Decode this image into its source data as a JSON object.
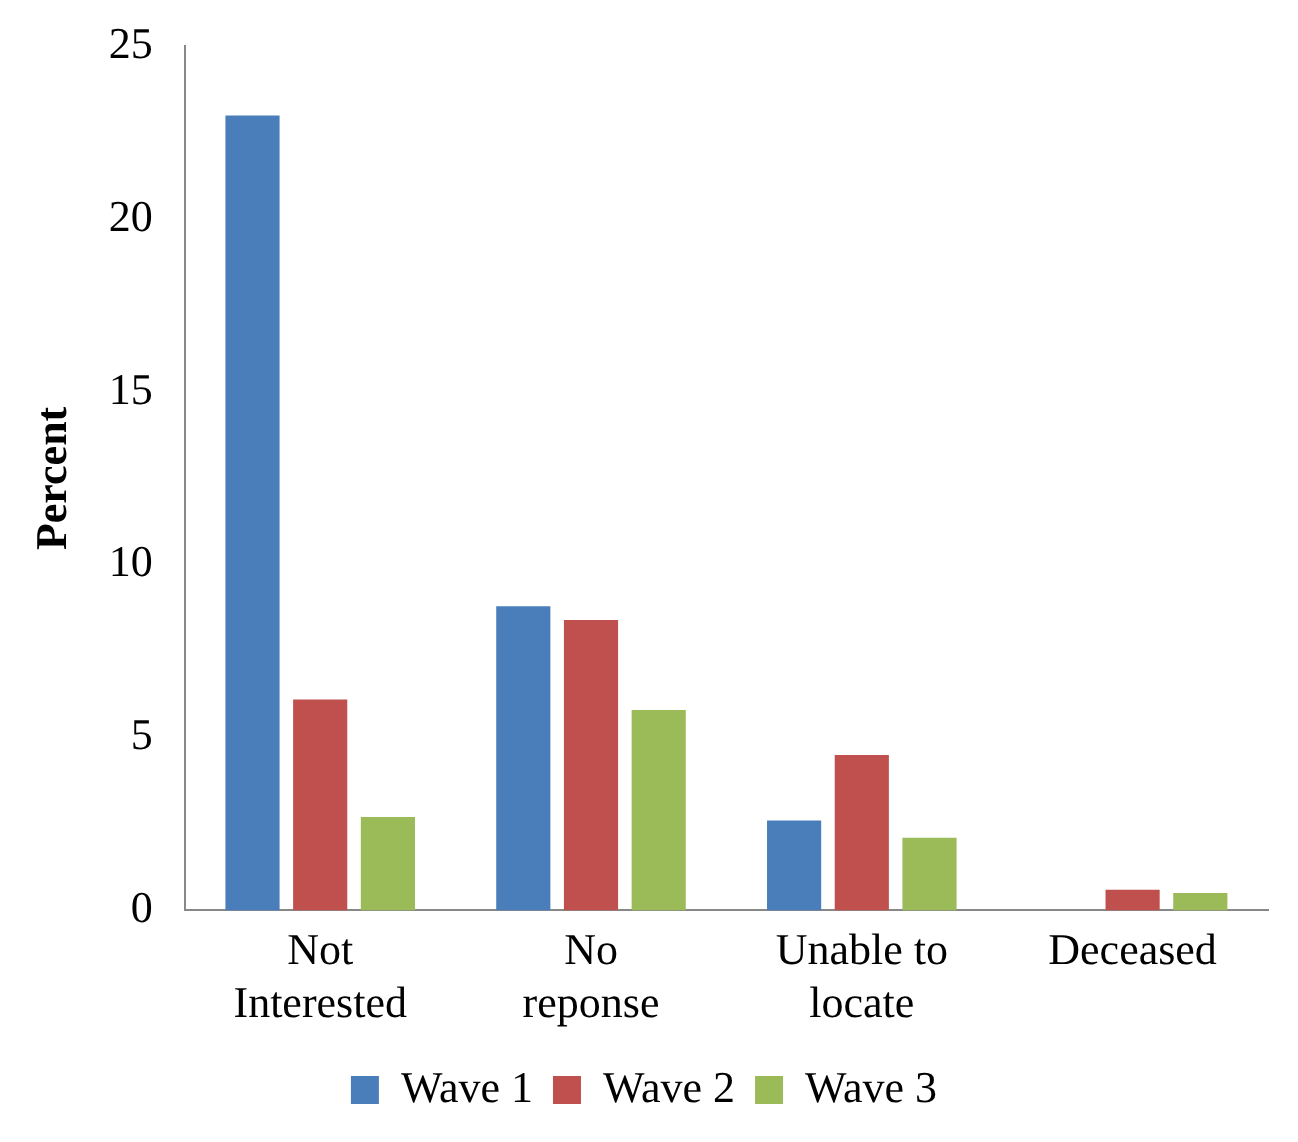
{
  "chart_data": {
    "type": "bar",
    "ylabel": "Percent",
    "categories": [
      "Not\nInterested",
      "No\nreponse",
      "Unable to\nlocate",
      "Deceased"
    ],
    "series": [
      {
        "name": "Wave 1",
        "color": "#4a7ebb",
        "values": [
          23.0,
          8.8,
          2.6,
          0
        ]
      },
      {
        "name": "Wave 2",
        "color": "#c0504d",
        "values": [
          6.1,
          8.4,
          4.5,
          0.6
        ]
      },
      {
        "name": "Wave 3",
        "color": "#9bbb59",
        "values": [
          2.7,
          5.8,
          2.1,
          0.5
        ]
      }
    ],
    "ylim": [
      0,
      25
    ],
    "yticks": [
      0,
      5,
      10,
      15,
      20,
      25
    ],
    "grid": false,
    "legend": "bottom"
  }
}
